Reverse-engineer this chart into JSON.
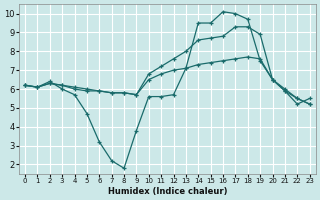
{
  "xlabel": "Humidex (Indice chaleur)",
  "background_color": "#cce8e8",
  "grid_color": "#ffffff",
  "line_color": "#1a6b6b",
  "xlim": [
    -0.5,
    23.5
  ],
  "ylim": [
    1.5,
    10.5
  ],
  "xticks": [
    0,
    1,
    2,
    3,
    4,
    5,
    6,
    7,
    8,
    9,
    10,
    11,
    12,
    13,
    14,
    15,
    16,
    17,
    18,
    19,
    20,
    21,
    22,
    23
  ],
  "yticks": [
    2,
    3,
    4,
    5,
    6,
    7,
    8,
    9,
    10
  ],
  "curve1_x": [
    0,
    1,
    2,
    3,
    4,
    5,
    6,
    7,
    8,
    9,
    10,
    11,
    12,
    13,
    14,
    15,
    16,
    17,
    18,
    19,
    20,
    21,
    22,
    23
  ],
  "curve1_y": [
    6.2,
    6.1,
    6.4,
    6.0,
    5.7,
    4.7,
    3.2,
    2.2,
    1.8,
    3.8,
    5.6,
    5.6,
    5.7,
    7.1,
    9.5,
    9.5,
    10.1,
    10.0,
    9.7,
    7.5,
    6.5,
    5.9,
    5.2,
    5.5
  ],
  "curve2_x": [
    0,
    1,
    2,
    3,
    4,
    5,
    6,
    7,
    8,
    9,
    10,
    11,
    12,
    13,
    14,
    15,
    16,
    17,
    18,
    19,
    20,
    21,
    22,
    23
  ],
  "curve2_y": [
    6.2,
    6.1,
    6.3,
    6.2,
    6.1,
    6.0,
    5.9,
    5.8,
    5.8,
    5.7,
    6.8,
    7.2,
    7.6,
    8.0,
    8.6,
    8.7,
    8.8,
    9.3,
    9.3,
    8.9,
    6.5,
    6.0,
    5.5,
    5.2
  ],
  "curve3_x": [
    0,
    1,
    2,
    3,
    4,
    5,
    6,
    7,
    8,
    9,
    10,
    11,
    12,
    13,
    14,
    15,
    16,
    17,
    18,
    19,
    20,
    21,
    22,
    23
  ],
  "curve3_y": [
    6.2,
    6.1,
    6.3,
    6.2,
    6.0,
    5.9,
    5.9,
    5.8,
    5.8,
    5.7,
    6.5,
    6.8,
    7.0,
    7.1,
    7.3,
    7.4,
    7.5,
    7.6,
    7.7,
    7.6,
    6.5,
    5.9,
    5.5,
    5.2
  ]
}
